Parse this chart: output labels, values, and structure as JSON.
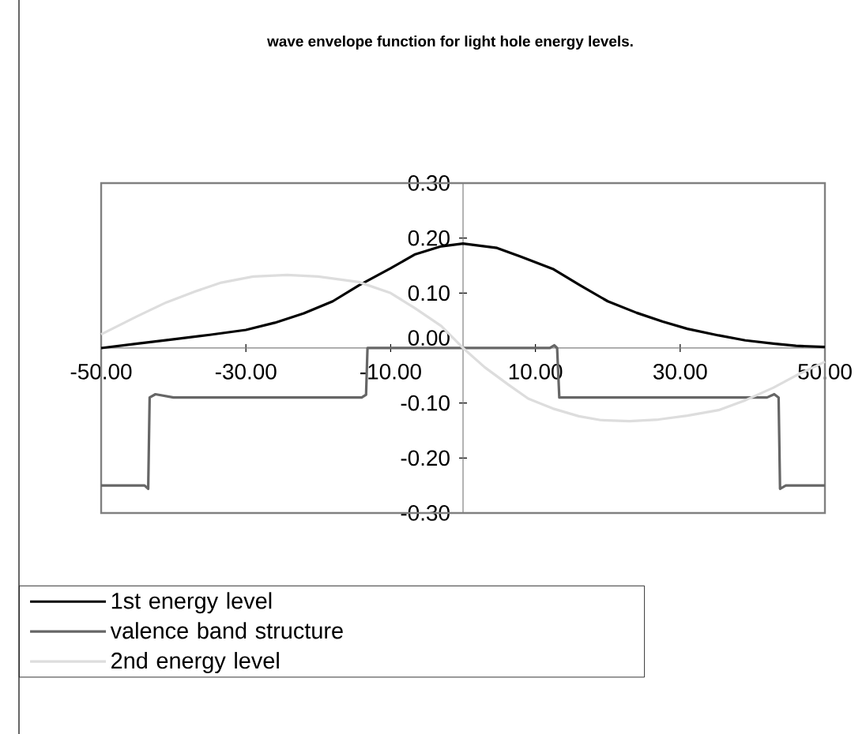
{
  "chart_data": {
    "type": "line",
    "title": "wave envelope function for light hole energy levels.",
    "xlim": [
      -50,
      50
    ],
    "ylim": [
      -0.3,
      0.3
    ],
    "xticks": [
      {
        "value": -50,
        "label": "-50.00"
      },
      {
        "value": -30,
        "label": "-30.00"
      },
      {
        "value": -10,
        "label": "-10.00"
      },
      {
        "value": 10,
        "label": "10.00"
      },
      {
        "value": 30,
        "label": "30.00"
      },
      {
        "value": 50,
        "label": "50.00"
      }
    ],
    "yticks": [
      {
        "value": -0.3,
        "label": "-0.30"
      },
      {
        "value": -0.2,
        "label": "-0.20"
      },
      {
        "value": -0.1,
        "label": "-0.10"
      },
      {
        "value": 0,
        "label": "0.00"
      },
      {
        "value": 0.1,
        "label": "0.10"
      },
      {
        "value": 0.2,
        "label": "0.20"
      },
      {
        "value": 0.3,
        "label": "0.30"
      }
    ],
    "grid": false,
    "legend": "bottom",
    "marker": "none",
    "line_style": "solid",
    "series": [
      {
        "name": "1st energy level",
        "color": "#000000",
        "x": [
          -50,
          -45,
          -40,
          -35,
          -30,
          -26,
          -22,
          -18,
          -14.4,
          -10,
          -6.7,
          -3,
          0,
          4.7,
          8,
          12.4,
          16.2,
          20,
          24,
          27.6,
          31,
          35.3,
          39,
          42.9,
          46,
          50
        ],
        "values": [
          0.0,
          0.008,
          0.016,
          0.024,
          0.033,
          0.046,
          0.063,
          0.085,
          0.114,
          0.145,
          0.17,
          0.185,
          0.19,
          0.182,
          0.166,
          0.144,
          0.114,
          0.085,
          0.064,
          0.048,
          0.035,
          0.023,
          0.014,
          0.008,
          0.004,
          0.002
        ]
      },
      {
        "name": "valence band structure",
        "color": "#666666",
        "x": [
          -50,
          -44,
          -43.5,
          -43.3,
          -42.5,
          -40,
          -14,
          -13.4,
          -13.2,
          -12,
          12,
          12.6,
          13,
          13.3,
          14,
          42,
          43,
          43.6,
          43.8,
          44.6,
          50
        ],
        "values": [
          -0.25,
          -0.25,
          -0.256,
          -0.09,
          -0.084,
          -0.09,
          -0.09,
          -0.085,
          0.0,
          0.0,
          0.0,
          0.005,
          0.0,
          -0.09,
          -0.09,
          -0.09,
          -0.084,
          -0.09,
          -0.256,
          -0.25,
          -0.25
        ]
      },
      {
        "name": "2nd energy level",
        "color": "#dddddd",
        "x": [
          -50,
          -45,
          -41,
          -37,
          -33.4,
          -29,
          -24.3,
          -20,
          -14.4,
          -10,
          -6.7,
          -3,
          0,
          3,
          6.3,
          9,
          12.4,
          16,
          19,
          23,
          27,
          31,
          35.3,
          39,
          42.9,
          46,
          50
        ],
        "values": [
          0.025,
          0.058,
          0.083,
          0.103,
          0.119,
          0.13,
          0.133,
          0.13,
          0.12,
          0.1,
          0.073,
          0.04,
          0.0,
          -0.035,
          -0.067,
          -0.092,
          -0.11,
          -0.124,
          -0.131,
          -0.133,
          -0.13,
          -0.123,
          -0.113,
          -0.095,
          -0.072,
          -0.05,
          -0.025
        ]
      }
    ]
  }
}
